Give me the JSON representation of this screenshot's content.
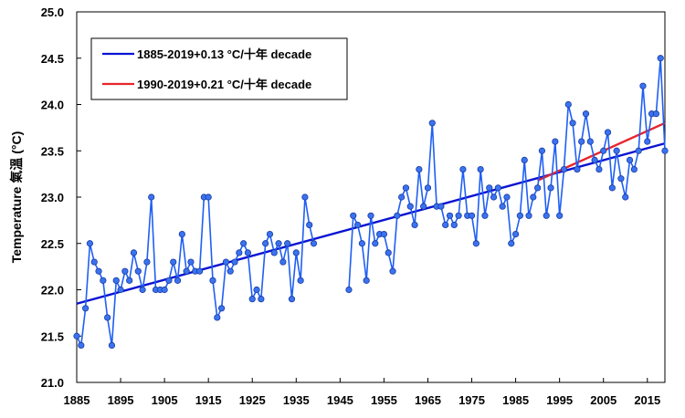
{
  "chart_data": {
    "type": "line",
    "ylabel": "Temperature 氣溫 (°C)",
    "xlim": [
      1885,
      2019
    ],
    "ylim": [
      21.0,
      25.0
    ],
    "xticks": [
      "1885",
      "1895",
      "1905",
      "1915",
      "1925",
      "1935",
      "1945",
      "1955",
      "1965",
      "1975",
      "1985",
      "1995",
      "2005",
      "2015"
    ],
    "yticks": [
      "21.0",
      "21.5",
      "22.0",
      "22.5",
      "23.0",
      "23.5",
      "24.0",
      "24.5",
      "25.0"
    ],
    "grid": false,
    "legend_position": "top-left",
    "series": [
      {
        "kind": "observed",
        "color": "#1f5ff5",
        "marker_fill": "#3a73f0",
        "segments": [
          {
            "x": [
              1885,
              1886,
              1887,
              1888,
              1889,
              1890,
              1891,
              1892,
              1893,
              1894,
              1895,
              1896,
              1897,
              1898,
              1899,
              1900,
              1901,
              1902,
              1903,
              1904,
              1905,
              1906,
              1907,
              1908,
              1909,
              1910,
              1911,
              1912,
              1913,
              1914,
              1915,
              1916,
              1917,
              1918,
              1919,
              1920,
              1921,
              1922,
              1923,
              1924,
              1925,
              1926,
              1927,
              1928,
              1929,
              1930,
              1931,
              1932,
              1933,
              1934,
              1935,
              1936,
              1937,
              1938,
              1939
            ],
            "y": [
              21.5,
              21.4,
              21.8,
              22.5,
              22.3,
              22.2,
              22.1,
              21.7,
              21.4,
              22.1,
              22.0,
              22.2,
              22.1,
              22.4,
              22.2,
              22.0,
              22.3,
              23.0,
              22.0,
              22.0,
              22.0,
              22.1,
              22.3,
              22.1,
              22.6,
              22.2,
              22.3,
              22.2,
              22.2,
              23.0,
              23.0,
              22.1,
              21.7,
              21.8,
              22.3,
              22.2,
              22.3,
              22.4,
              22.5,
              22.4,
              21.9,
              22.0,
              21.9,
              22.5,
              22.6,
              22.4,
              22.5,
              22.3,
              22.5,
              21.9,
              22.4,
              22.1,
              23.0,
              22.7,
              22.5
            ]
          },
          {
            "x": [
              1947,
              1948,
              1949,
              1950,
              1951,
              1952,
              1953,
              1954,
              1955,
              1956,
              1957,
              1958,
              1959,
              1960,
              1961,
              1962,
              1963,
              1964,
              1965,
              1966,
              1967,
              1968,
              1969,
              1970,
              1971,
              1972,
              1973,
              1974,
              1975,
              1976,
              1977,
              1978,
              1979,
              1980,
              1981,
              1982,
              1983,
              1984,
              1985,
              1986,
              1987,
              1988,
              1989,
              1990,
              1991,
              1992,
              1993,
              1994,
              1995,
              1996,
              1997,
              1998,
              1999,
              2000,
              2001,
              2002,
              2003,
              2004,
              2005,
              2006,
              2007,
              2008,
              2009,
              2010,
              2011,
              2012,
              2013,
              2014,
              2015,
              2016,
              2017,
              2018,
              2019
            ],
            "y": [
              22.0,
              22.8,
              22.7,
              22.5,
              22.1,
              22.8,
              22.5,
              22.6,
              22.6,
              22.4,
              22.2,
              22.8,
              23.0,
              23.1,
              22.9,
              22.7,
              23.3,
              22.9,
              23.1,
              23.8,
              22.9,
              22.9,
              22.7,
              22.8,
              22.7,
              22.8,
              23.3,
              22.8,
              22.8,
              22.5,
              23.3,
              22.8,
              23.1,
              23.0,
              23.1,
              22.9,
              23.0,
              22.5,
              22.6,
              22.8,
              23.4,
              22.8,
              23.0,
              23.1,
              23.5,
              22.8,
              23.1,
              23.6,
              22.8,
              23.3,
              24.0,
              23.8,
              23.3,
              23.6,
              23.9,
              23.6,
              23.4,
              23.3,
              23.5,
              23.7,
              23.1,
              23.5,
              23.2,
              23.0,
              23.4,
              23.3,
              23.5,
              24.2,
              23.6,
              23.9,
              23.9,
              24.5,
              23.5
            ]
          }
        ]
      },
      {
        "name": "1885-2019+0.13 °C/十年 decade",
        "kind": "trend",
        "color": "#0a14d2",
        "x": [
          1885,
          2019
        ],
        "y": [
          21.85,
          23.58
        ]
      },
      {
        "name": "1990-2019+0.21 °C/十年 decade",
        "kind": "trend",
        "color": "#e8242c",
        "x": [
          1990,
          2019
        ],
        "y": [
          23.18,
          23.8
        ]
      }
    ]
  }
}
